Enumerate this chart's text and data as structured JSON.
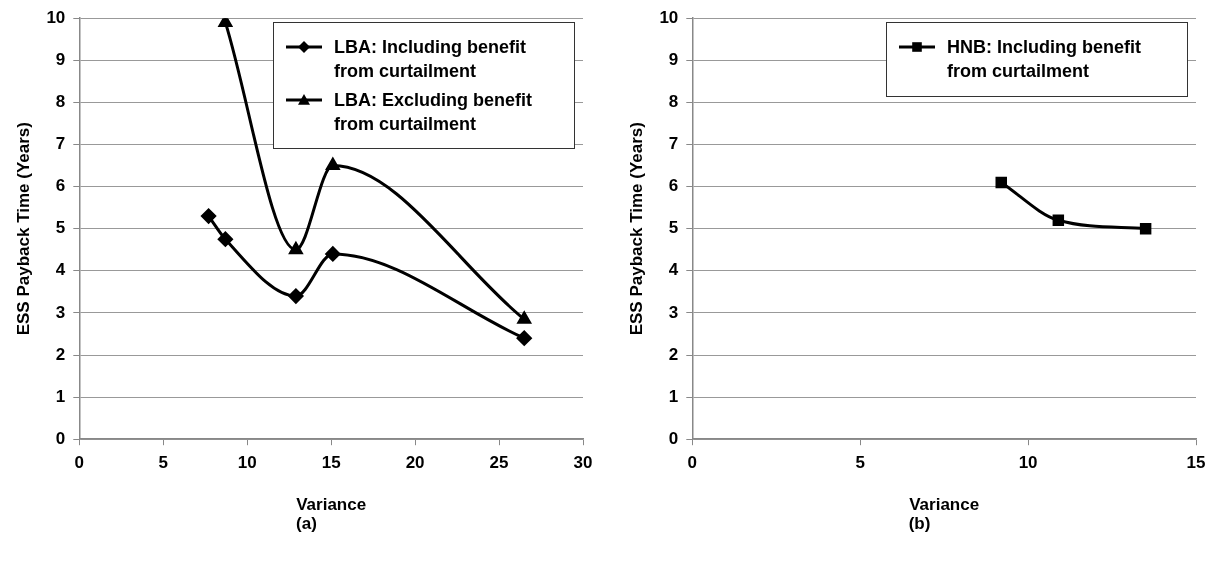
{
  "chart_data": [
    {
      "type": "line",
      "xlabel": "Variance",
      "ylabel": "ESS Payback Time (Years)",
      "annotations": [
        "(a)"
      ],
      "xlim": [
        0,
        30
      ],
      "xticks": [
        0,
        5,
        10,
        15,
        20,
        25,
        30
      ],
      "ylim": [
        0,
        10
      ],
      "yticks": [
        0,
        1,
        2,
        3,
        4,
        5,
        6,
        7,
        8,
        9,
        10
      ],
      "grid": "y",
      "legend": "top right",
      "series": [
        {
          "name": "LBA: Including benefit from curtailment",
          "color": "#000000",
          "marker": "diamond",
          "x": [
            7.7,
            8.7,
            12.9,
            15.1,
            26.5
          ],
          "values": [
            5.3,
            4.75,
            3.4,
            4.4,
            2.4
          ]
        },
        {
          "name": "LBA: Excluding benefit from curtailment",
          "color": "#000000",
          "marker": "triangle",
          "x": [
            8.7,
            12.9,
            15.1,
            26.5
          ],
          "values": [
            9.9,
            4.5,
            6.5,
            2.85
          ]
        }
      ]
    },
    {
      "type": "line",
      "xlabel": "Variance",
      "ylabel": "ESS Payback Time (Years)",
      "annotations": [
        "(b)"
      ],
      "xlim": [
        0,
        15
      ],
      "xticks": [
        0,
        5,
        10,
        15
      ],
      "ylim": [
        0,
        10
      ],
      "yticks": [
        0,
        1,
        2,
        3,
        4,
        5,
        6,
        7,
        8,
        9,
        10
      ],
      "grid": "y",
      "legend": "top right",
      "series": [
        {
          "name": "HNB: Including benefit from curtailment",
          "color": "#000000",
          "marker": "square",
          "x": [
            9.2,
            10.9,
            13.5
          ],
          "values": [
            6.1,
            5.2,
            5.0
          ]
        }
      ]
    }
  ]
}
